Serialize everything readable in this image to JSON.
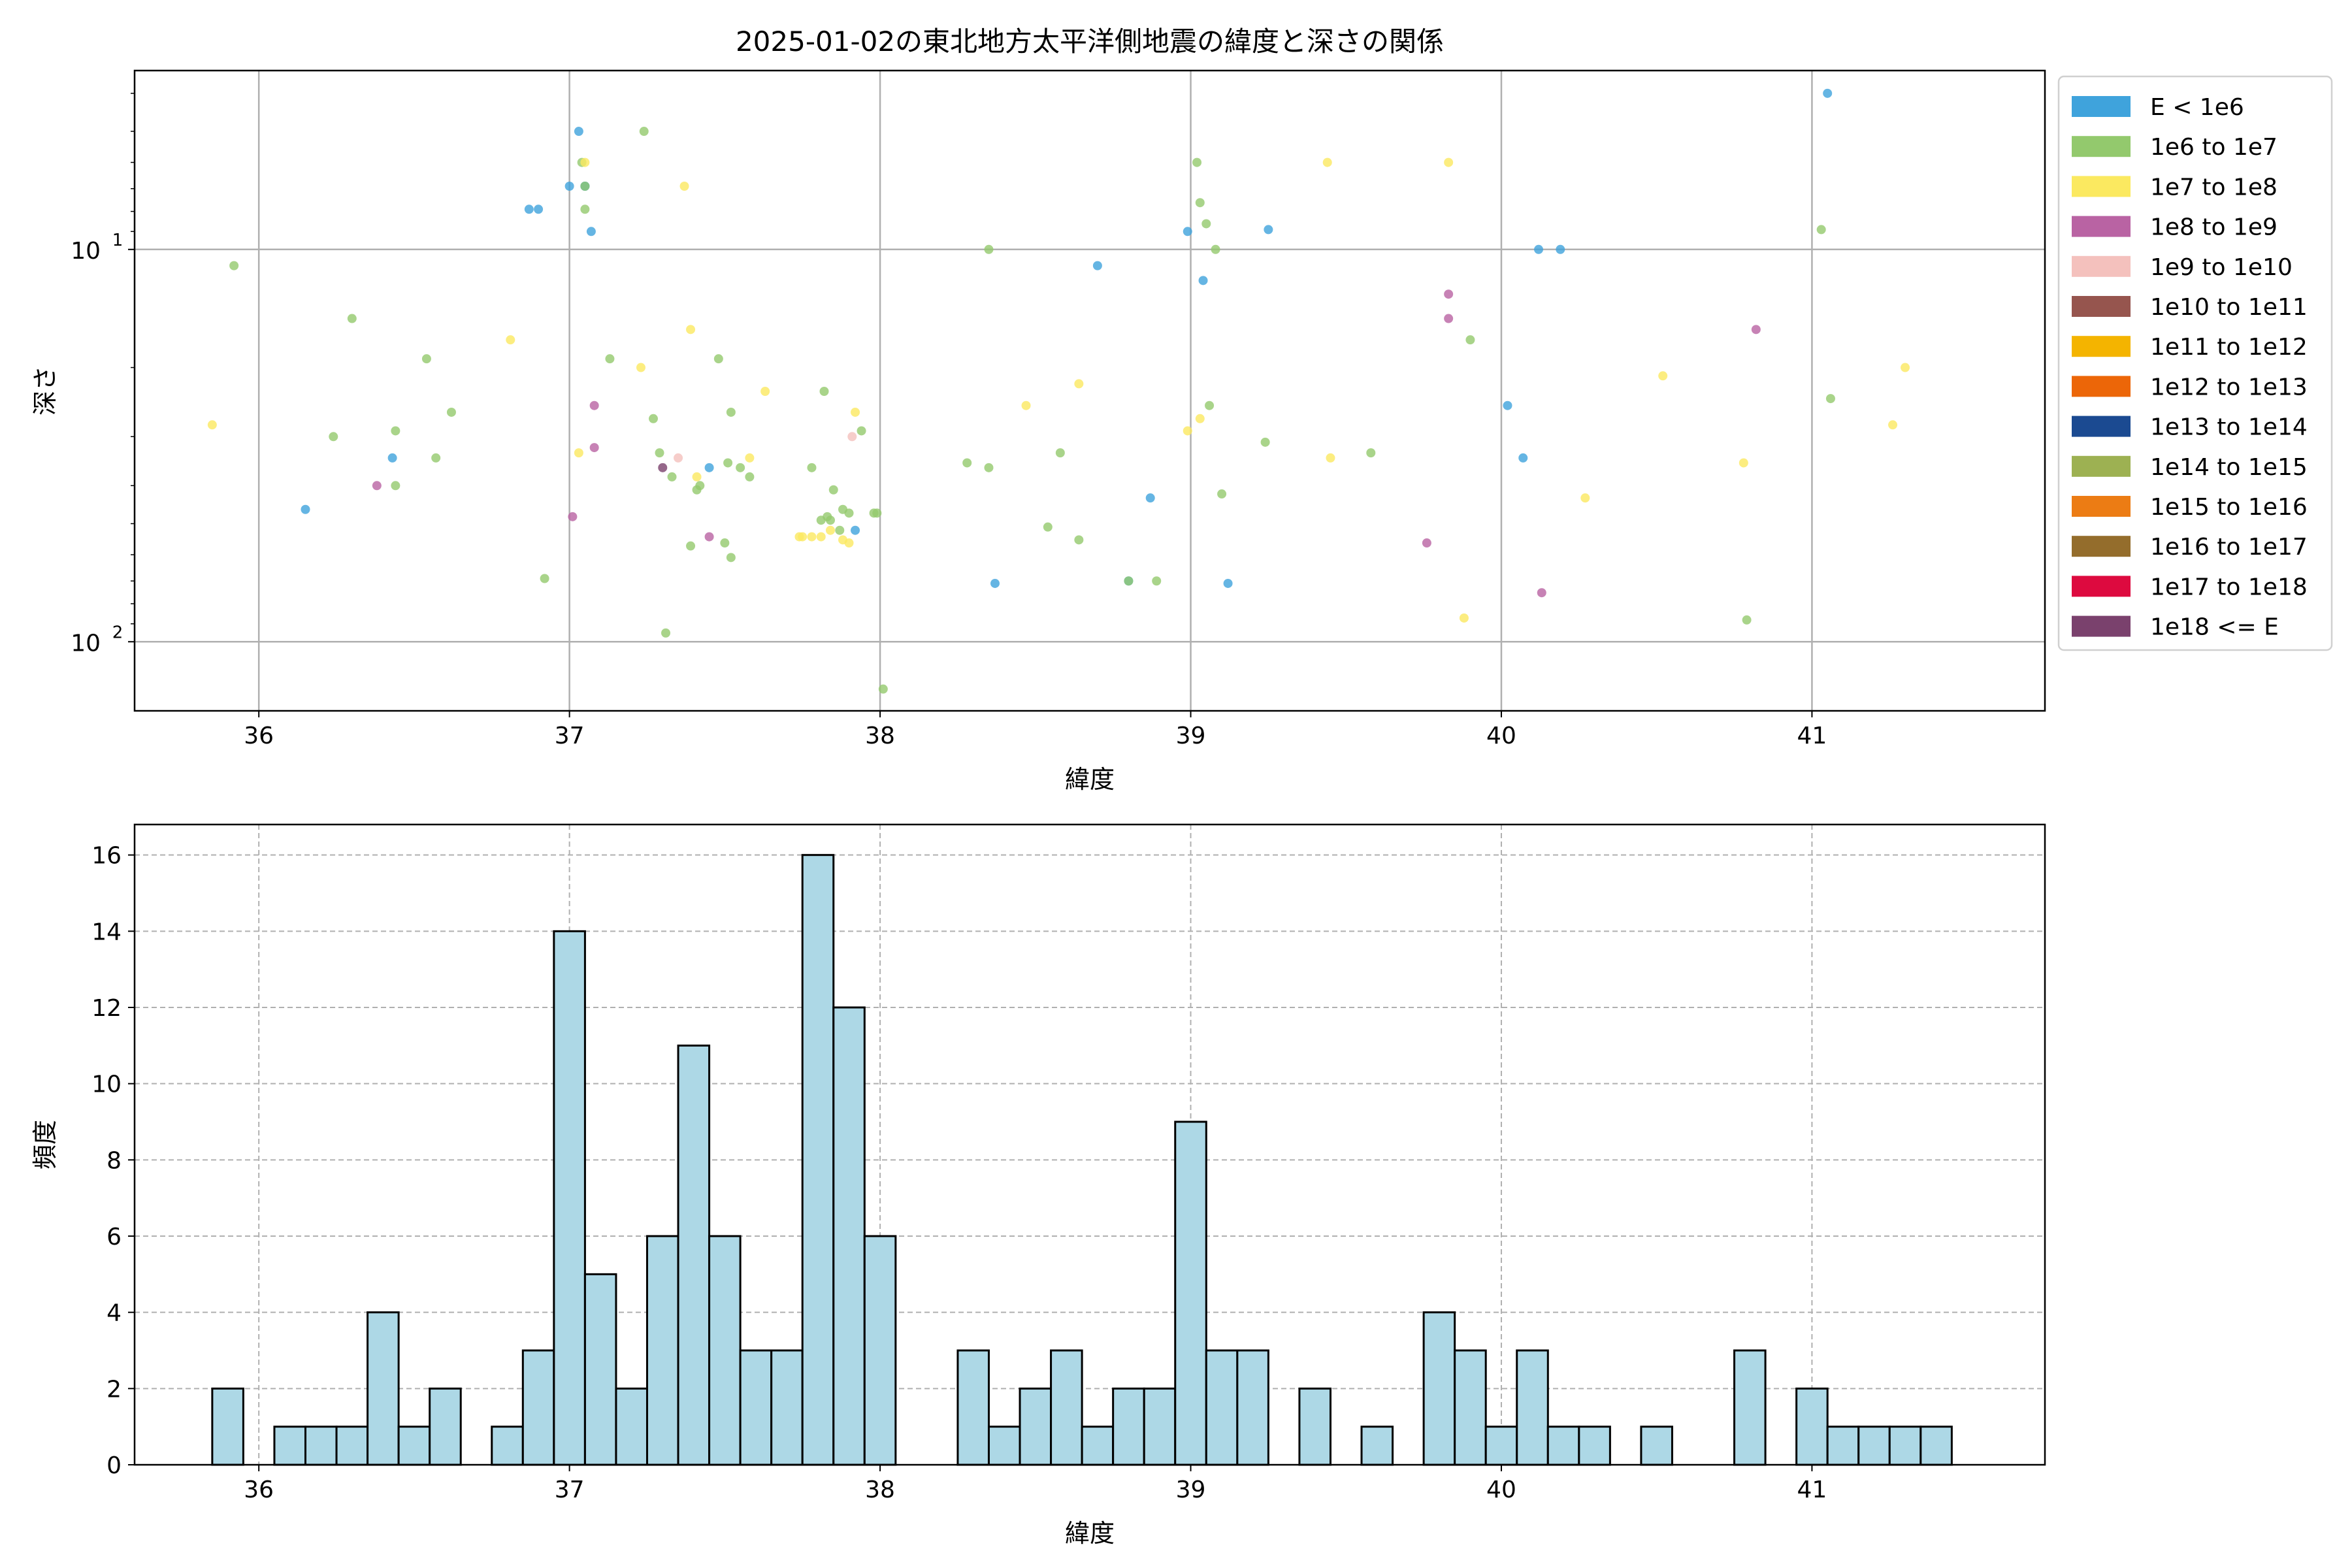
{
  "figure_title": "2025-01-02の東北地方太平洋側地震の緯度と深さの関係",
  "chart_data": [
    {
      "type": "scatter",
      "title": "2025-01-02の東北地方太平洋側地震の緯度と深さの関係",
      "xlabel": "緯度",
      "ylabel": "深さ",
      "xlim": [
        35.6,
        41.75
      ],
      "ylim": [
        150,
        3.5
      ],
      "yscale": "log",
      "y_inverted": true,
      "grid": true,
      "legend_position": "outside-right",
      "x_ticks": [
        36,
        37,
        38,
        39,
        40,
        41
      ],
      "y_ticks": [
        {
          "value": 10,
          "label_base": "10",
          "label_exp": "1"
        },
        {
          "value": 100,
          "label_base": "10",
          "label_exp": "2"
        }
      ],
      "legend": [
        {
          "label": "E < 1e6",
          "color": "#3fa3dc"
        },
        {
          "label": "1e6 to 1e7",
          "color": "#93c96d"
        },
        {
          "label": "1e7 to 1e8",
          "color": "#fbe960"
        },
        {
          "label": "1e8 to 1e9",
          "color": "#b963a3"
        },
        {
          "label": "1e9 to 1e10",
          "color": "#f4c1bd"
        },
        {
          "label": "1e10 to 1e11",
          "color": "#96554e"
        },
        {
          "label": "1e11 to 1e12",
          "color": "#f4b400"
        },
        {
          "label": "1e12 to 1e13",
          "color": "#ec6608"
        },
        {
          "label": "1e13 to 1e14",
          "color": "#1b4a91"
        },
        {
          "label": "1e14 to 1e15",
          "color": "#9db152"
        },
        {
          "label": "1e15 to 1e16",
          "color": "#ec7c14"
        },
        {
          "label": "1e16 to 1e17",
          "color": "#946d2c"
        },
        {
          "label": "1e17 to 1e18",
          "color": "#dd0a3f"
        },
        {
          "label": "1e18 <= E",
          "color": "#7a416d"
        }
      ],
      "series": [
        {
          "name": "E < 1e6",
          "color": "#3fa3dc",
          "points": [
            [
              36.15,
              46
            ],
            [
              36.43,
              34
            ],
            [
              36.87,
              7.9
            ],
            [
              36.9,
              7.9
            ],
            [
              37.0,
              6.9
            ],
            [
              37.03,
              5.0
            ],
            [
              37.05,
              6.9
            ],
            [
              37.07,
              9
            ],
            [
              37.05,
              6.9
            ],
            [
              37.45,
              36
            ],
            [
              37.92,
              52
            ],
            [
              38.37,
              71
            ],
            [
              38.7,
              11
            ],
            [
              38.8,
              70
            ],
            [
              38.87,
              43
            ],
            [
              38.99,
              9
            ],
            [
              39.04,
              12
            ],
            [
              39.12,
              71
            ],
            [
              39.25,
              8.9
            ],
            [
              40.02,
              25
            ],
            [
              40.07,
              34
            ],
            [
              40.12,
              10
            ],
            [
              40.19,
              10
            ],
            [
              41.05,
              4.0
            ]
          ]
        },
        {
          "name": "1e6 to 1e7",
          "color": "#93c96d",
          "points": [
            [
              35.92,
              11
            ],
            [
              36.24,
              30
            ],
            [
              36.3,
              15
            ],
            [
              36.44,
              29
            ],
            [
              36.44,
              40
            ],
            [
              36.54,
              19
            ],
            [
              36.57,
              34
            ],
            [
              36.62,
              26
            ],
            [
              36.92,
              69
            ],
            [
              37.04,
              6
            ],
            [
              37.05,
              6.9
            ],
            [
              37.05,
              7.9
            ],
            [
              37.13,
              19
            ],
            [
              37.24,
              5.0
            ],
            [
              37.27,
              27
            ],
            [
              37.29,
              33
            ],
            [
              37.31,
              95
            ],
            [
              37.33,
              38
            ],
            [
              37.39,
              57
            ],
            [
              37.41,
              41
            ],
            [
              37.42,
              40
            ],
            [
              37.48,
              19
            ],
            [
              37.5,
              56
            ],
            [
              37.51,
              35
            ],
            [
              37.52,
              61
            ],
            [
              37.52,
              26
            ],
            [
              37.55,
              36
            ],
            [
              37.58,
              38
            ],
            [
              37.78,
              36
            ],
            [
              37.81,
              49
            ],
            [
              37.82,
              23
            ],
            [
              37.83,
              48
            ],
            [
              37.84,
              49
            ],
            [
              37.85,
              41
            ],
            [
              37.87,
              52
            ],
            [
              37.88,
              46
            ],
            [
              37.9,
              47
            ],
            [
              37.94,
              29
            ],
            [
              37.98,
              47
            ],
            [
              37.99,
              47
            ],
            [
              38.01,
              132
            ],
            [
              38.28,
              35
            ],
            [
              38.35,
              10
            ],
            [
              38.35,
              36
            ],
            [
              38.54,
              51
            ],
            [
              38.58,
              33
            ],
            [
              38.64,
              55
            ],
            [
              38.8,
              70
            ],
            [
              38.89,
              70
            ],
            [
              39.02,
              6
            ],
            [
              39.03,
              7.6
            ],
            [
              39.05,
              8.6
            ],
            [
              39.06,
              25
            ],
            [
              39.08,
              10
            ],
            [
              39.1,
              42
            ],
            [
              39.24,
              31
            ],
            [
              39.58,
              33
            ],
            [
              39.9,
              17
            ],
            [
              40.79,
              88
            ],
            [
              41.03,
              8.9
            ],
            [
              41.06,
              24
            ]
          ]
        },
        {
          "name": "1e7 to 1e8",
          "color": "#fbe960",
          "points": [
            [
              35.85,
              28
            ],
            [
              36.81,
              17
            ],
            [
              37.03,
              33
            ],
            [
              37.05,
              6
            ],
            [
              37.23,
              20
            ],
            [
              37.37,
              6.9
            ],
            [
              37.39,
              16
            ],
            [
              37.41,
              38
            ],
            [
              37.58,
              34
            ],
            [
              37.63,
              23
            ],
            [
              37.74,
              54
            ],
            [
              37.75,
              54
            ],
            [
              37.78,
              54
            ],
            [
              37.81,
              54
            ],
            [
              37.84,
              52
            ],
            [
              37.88,
              55
            ],
            [
              37.9,
              56
            ],
            [
              37.92,
              26
            ],
            [
              38.47,
              25
            ],
            [
              38.64,
              22
            ],
            [
              38.99,
              29
            ],
            [
              39.03,
              27
            ],
            [
              39.44,
              6
            ],
            [
              39.45,
              34
            ],
            [
              39.83,
              6
            ],
            [
              39.88,
              87
            ],
            [
              40.27,
              43
            ],
            [
              40.52,
              21
            ],
            [
              40.78,
              35
            ],
            [
              41.26,
              28
            ],
            [
              41.3,
              20
            ]
          ]
        },
        {
          "name": "1e8 to 1e9",
          "color": "#b963a3",
          "points": [
            [
              36.38,
              40
            ],
            [
              37.01,
              48
            ],
            [
              37.08,
              32
            ],
            [
              37.08,
              25
            ],
            [
              37.45,
              54
            ],
            [
              39.76,
              56
            ],
            [
              39.83,
              13
            ],
            [
              39.83,
              15
            ],
            [
              40.13,
              75
            ],
            [
              40.82,
              16
            ]
          ]
        },
        {
          "name": "1e9 to 1e10",
          "color": "#f4c1bd",
          "points": [
            [
              37.35,
              34
            ],
            [
              37.91,
              30
            ]
          ]
        },
        {
          "name": "1e18 <= E",
          "color": "#7a416d",
          "points": [
            [
              37.3,
              36
            ]
          ]
        }
      ]
    },
    {
      "type": "bar",
      "title": "",
      "xlabel": "緯度",
      "ylabel": "頻度",
      "xlim": [
        35.6,
        41.75
      ],
      "ylim": [
        0,
        16.8
      ],
      "grid": true,
      "x_ticks": [
        36,
        37,
        38,
        39,
        40,
        41
      ],
      "y_ticks": [
        0,
        2,
        4,
        6,
        8,
        10,
        12,
        14,
        16
      ],
      "bar_color": "#add8e6",
      "edge_color": "#000000",
      "bin_start": 35.85,
      "bin_width": 0.1,
      "values": [
        2,
        0,
        1,
        1,
        1,
        4,
        1,
        2,
        0,
        1,
        3,
        14,
        5,
        2,
        6,
        11,
        6,
        3,
        3,
        16,
        12,
        6,
        0,
        0,
        3,
        1,
        2,
        3,
        1,
        2,
        2,
        9,
        3,
        3,
        0,
        2,
        0,
        1,
        0,
        4,
        3,
        1,
        3,
        1,
        1,
        0,
        1,
        0,
        0,
        3,
        0,
        2,
        1,
        1,
        1,
        1
      ]
    }
  ]
}
